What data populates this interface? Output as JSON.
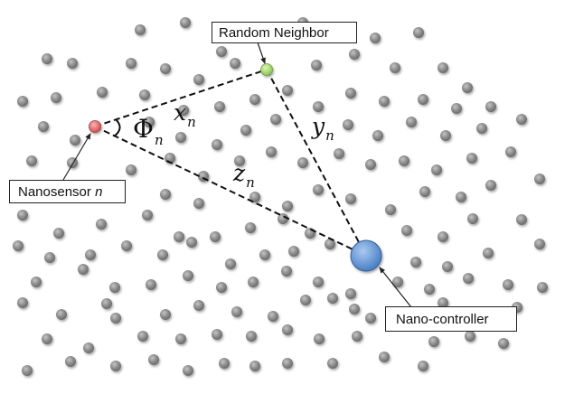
{
  "diagram": {
    "labels": {
      "random_neighbor": "Random Neighbor",
      "nanosensor_prefix": "Nanosensor ",
      "nanosensor_var": "n",
      "nano_controller": "Nano-controller"
    },
    "math": {
      "angle_symbol": "Φ",
      "angle_sub": "n",
      "x": "x",
      "x_sub": "n",
      "y": "y",
      "y_sub": "n",
      "z": "z",
      "z_sub": "n"
    },
    "colors": {
      "sensor_node": "#e06a6a",
      "neighbor_node": "#a6d86a",
      "controller_node": "#5d92d4",
      "background_node": "#8c8c8c",
      "edge": "#111111"
    }
  }
}
